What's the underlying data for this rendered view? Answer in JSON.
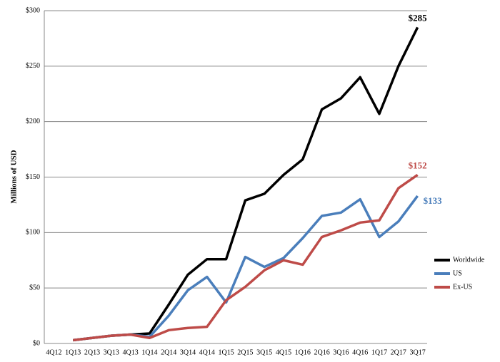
{
  "chart_data": {
    "type": "line",
    "y_label": "Millions of USD",
    "categories": [
      "4Q12",
      "1Q13",
      "2Q13",
      "3Q13",
      "4Q13",
      "1Q14",
      "2Q14",
      "3Q14",
      "4Q14",
      "1Q15",
      "2Q15",
      "3Q15",
      "4Q15",
      "1Q16",
      "2Q16",
      "3Q16",
      "4Q16",
      "1Q17",
      "2Q17",
      "3Q17"
    ],
    "series": [
      {
        "name": "Worldwide",
        "color": "#000000",
        "values": [
          null,
          3,
          5,
          7,
          8,
          9,
          35,
          62,
          76,
          76,
          129,
          135,
          152,
          166,
          211,
          221,
          240,
          207,
          250,
          285
        ],
        "value_labels": [
          null,
          null,
          null,
          null,
          null,
          null,
          null,
          null,
          null,
          null,
          null,
          null,
          null,
          null,
          null,
          null,
          null,
          null,
          null,
          "$285"
        ]
      },
      {
        "name": "US",
        "color": "#4a7ebb",
        "values": [
          null,
          3,
          5,
          7,
          8,
          6,
          25,
          48,
          60,
          37,
          78,
          69,
          77,
          95,
          115,
          118,
          130,
          96,
          110,
          133
        ],
        "value_labels": [
          null,
          null,
          null,
          null,
          null,
          null,
          null,
          null,
          null,
          null,
          null,
          null,
          null,
          null,
          null,
          null,
          null,
          null,
          null,
          "$133"
        ]
      },
      {
        "name": "Ex-US",
        "color": "#be4b48",
        "values": [
          null,
          3,
          5,
          7,
          8,
          5,
          12,
          14,
          15,
          39,
          51,
          66,
          75,
          71,
          96,
          102,
          109,
          111,
          140,
          152
        ],
        "value_labels": [
          null,
          null,
          null,
          null,
          null,
          null,
          null,
          null,
          null,
          null,
          null,
          null,
          null,
          null,
          null,
          null,
          null,
          null,
          null,
          "$152"
        ]
      }
    ],
    "ylim": [
      0,
      300
    ],
    "yticks": [
      {
        "value": 0,
        "label": "$0"
      },
      {
        "value": 50,
        "label": "$50"
      },
      {
        "value": 100,
        "label": "$100"
      },
      {
        "value": 150,
        "label": "$150"
      },
      {
        "value": 200,
        "label": "$200"
      },
      {
        "value": 250,
        "label": "$250"
      },
      {
        "value": 300,
        "label": "$300"
      }
    ],
    "grid": true,
    "legend": "right"
  }
}
